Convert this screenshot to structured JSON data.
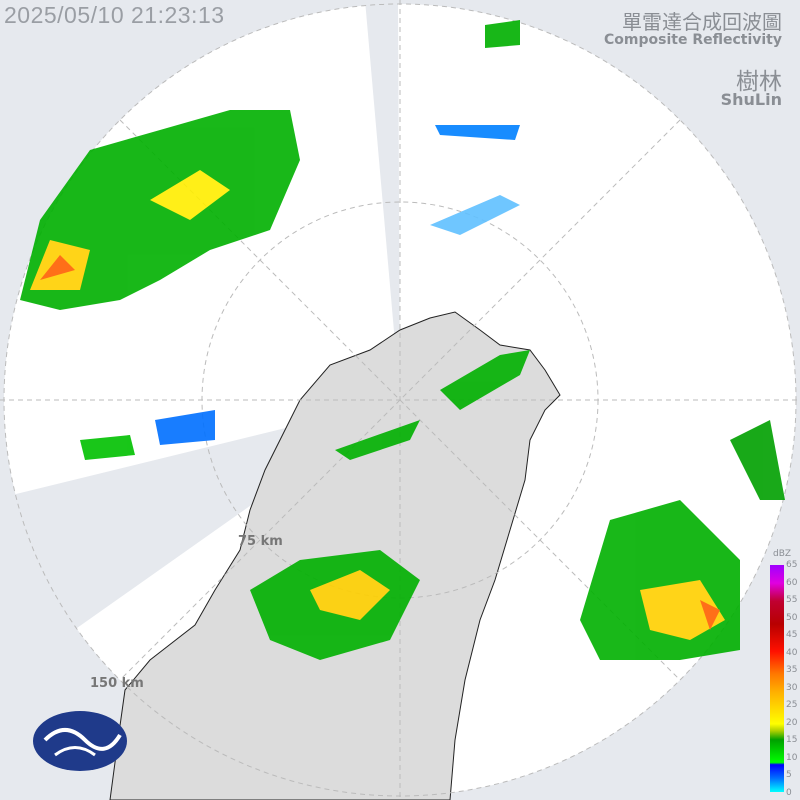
{
  "timestamp": "2025/05/10 21:23:13",
  "title_zh": "單雷達合成回波圖",
  "title_en": "Composite Reflectivity",
  "station_zh": "樹林",
  "station_en": "ShuLin",
  "range_labels": [
    "75 km",
    "150 km"
  ],
  "legend": {
    "unit": "dBZ",
    "ticks": [
      "65",
      "60",
      "55",
      "50",
      "45",
      "40",
      "35",
      "30",
      "25",
      "20",
      "15",
      "10",
      "5",
      "0"
    ]
  },
  "logo": "cwa-logo"
}
